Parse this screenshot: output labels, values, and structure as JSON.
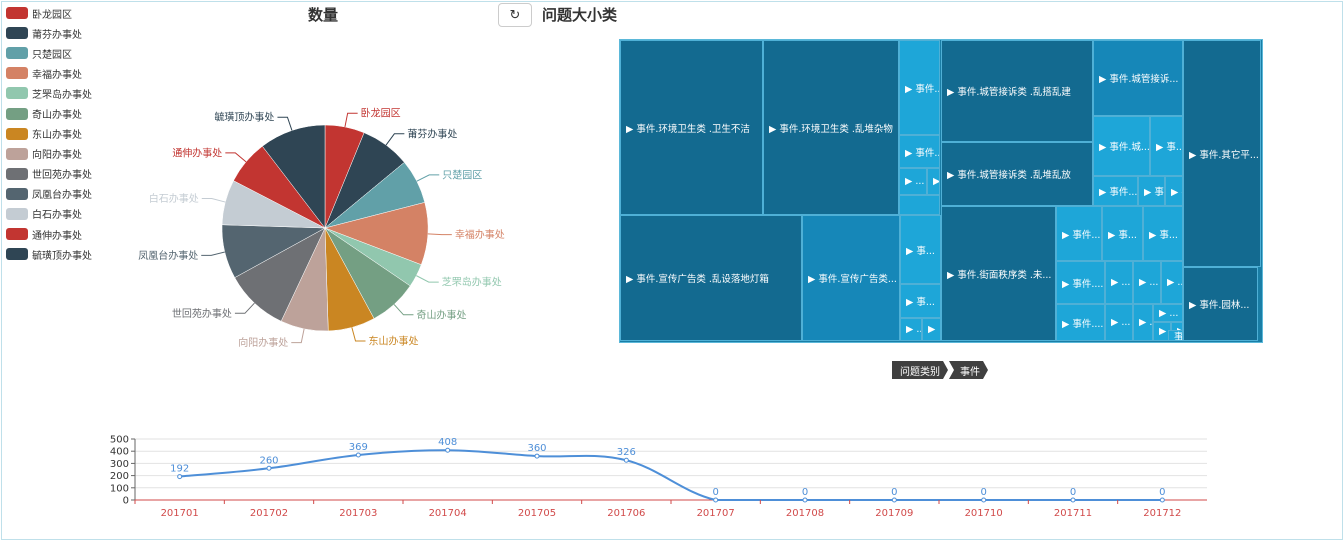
{
  "pie_title": "数量",
  "treemap_title": "问题大小类",
  "refresh_icon": "refresh-icon",
  "colors": {
    "palette": [
      "#c23531",
      "#2f4554",
      "#61a0a8",
      "#d48265",
      "#91c7ae",
      "#749f83",
      "#ca8622",
      "#bda29a",
      "#6e7074",
      "#546570",
      "#c4ccd3",
      "#c23531",
      "#2f4554"
    ],
    "treemap_dark": "#136a90",
    "treemap_mid": "#1687b8",
    "treemap_light": "#1ea6d8",
    "line": "#4e8fd8",
    "x_axis": "#d14a4a"
  },
  "legend": [
    "卧龙园区",
    "莆芬办事处",
    "只楚园区",
    "幸福办事处",
    "芝罘岛办事处",
    "奇山办事处",
    "东山办事处",
    "向阳办事处",
    "世回苑办事处",
    "凤凰台办事处",
    "白石办事处",
    "通伸办事处",
    "毓璜顶办事处"
  ],
  "treemap_tiles": [
    {
      "label": "▶ 事件.环境卫生类 .卫生不洁",
      "shade": "dark"
    },
    {
      "label": "▶ 事件.环境卫生类 .乱堆杂物",
      "shade": "dark"
    },
    {
      "label": "▶ 事件...",
      "shade": "light"
    },
    {
      "label": "▶ 事件...",
      "shade": "light"
    },
    {
      "label": "▶ ...",
      "shade": "light"
    },
    {
      "label": "▶",
      "shade": "light"
    },
    {
      "label": "",
      "shade": "light"
    },
    {
      "label": "▶ 事件.城管接诉类 .乱搭乱建",
      "shade": "dark"
    },
    {
      "label": "▶ 事件.城管接诉...",
      "shade": "mid"
    },
    {
      "label": "▶ 事件.城...",
      "shade": "light"
    },
    {
      "label": "▶ 事...",
      "shade": "light"
    },
    {
      "label": "▶ 事件.城管接诉类 .乱堆乱放",
      "shade": "dark"
    },
    {
      "label": "▶ 事件...",
      "shade": "light"
    },
    {
      "label": "▶ 事...",
      "shade": "light"
    },
    {
      "label": "▶ 事...",
      "shade": "light"
    },
    {
      "label": "▶ 事件.其它平...",
      "shade": "dark"
    },
    {
      "label": "▶ 事件.宣传广告类 .乱设落地灯箱",
      "shade": "dark"
    },
    {
      "label": "▶ 事件.宣传广告类...",
      "shade": "mid"
    },
    {
      "label": "▶ 事...",
      "shade": "light"
    },
    {
      "label": "▶ 事...",
      "shade": "light"
    },
    {
      "label": "▶ ...",
      "shade": "light"
    },
    {
      "label": "▶",
      "shade": "light"
    },
    {
      "label": "▶ 事件.街面秩序类 .未...",
      "shade": "dark"
    },
    {
      "label": "▶ 事件....",
      "shade": "light"
    },
    {
      "label": "▶ 事...",
      "shade": "light"
    },
    {
      "label": "▶ 事...",
      "shade": "light"
    },
    {
      "label": "▶ 事件....",
      "shade": "light"
    },
    {
      "label": "▶ ...",
      "shade": "light"
    },
    {
      "label": "▶ ...",
      "shade": "light"
    },
    {
      "label": "▶ ...",
      "shade": "light"
    },
    {
      "label": "▶ 事件....",
      "shade": "light"
    },
    {
      "label": "▶ ...",
      "shade": "light"
    },
    {
      "label": "▶ ...",
      "shade": "light"
    },
    {
      "label": "▶ ...",
      "shade": "light"
    },
    {
      "label": "▶",
      "shade": "light"
    },
    {
      "label": "▶",
      "shade": "light"
    },
    {
      "label": "事",
      "shade": "light"
    },
    {
      "label": "▶ 事件.园林...",
      "shade": "dark"
    }
  ],
  "breadcrumb": [
    "问题类别",
    "事件"
  ],
  "chart_data": [
    {
      "type": "pie",
      "title": "数量",
      "categories": [
        "卧龙园区",
        "莆芬办事处",
        "只楚园区",
        "幸福办事处",
        "芝罘岛办事处",
        "奇山办事处",
        "东山办事处",
        "向阳办事处",
        "世回苑办事处",
        "凤凰台办事处",
        "白石办事处",
        "通伸办事处",
        "毓璜顶办事处"
      ],
      "values": [
        6.2,
        7.8,
        7.0,
        9.8,
        3.7,
        7.6,
        7.4,
        7.5,
        10.0,
        8.5,
        7.1,
        7.0,
        10.4
      ],
      "legend": "left"
    },
    {
      "type": "line",
      "x": [
        "201701",
        "201702",
        "201703",
        "201704",
        "201705",
        "201706",
        "201707",
        "201708",
        "201709",
        "201710",
        "201711",
        "201712"
      ],
      "values": [
        192,
        260,
        369,
        408,
        360,
        326,
        0,
        0,
        0,
        0,
        0,
        0
      ],
      "ylim": [
        0,
        500
      ],
      "yticks": [
        0,
        100,
        200,
        300,
        400,
        500
      ],
      "grid": true,
      "smooth": true
    }
  ]
}
